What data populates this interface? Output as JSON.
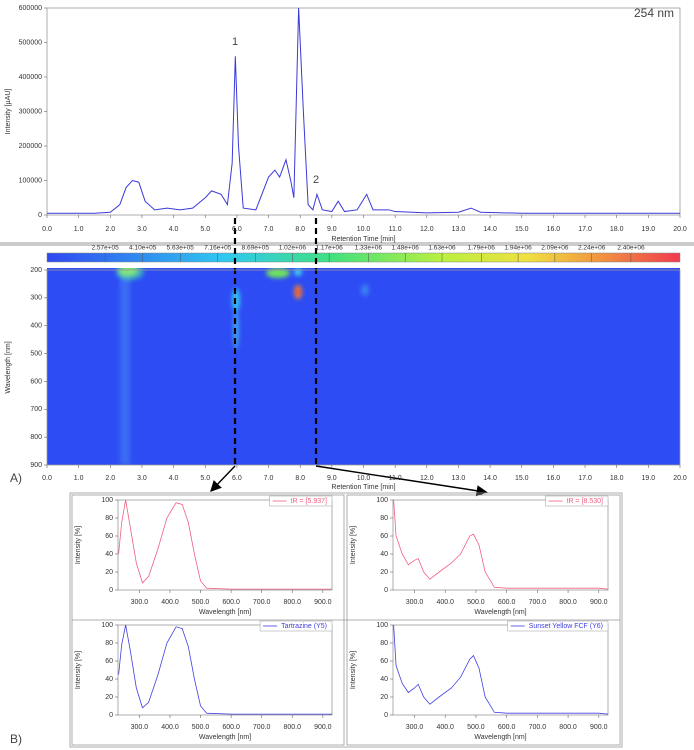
{
  "panel_labels": [
    "A)",
    "B)"
  ],
  "chart_data": [
    {
      "type": "line",
      "title": "254 nm",
      "xlabel": "Retention Time [min]",
      "ylabel": "Intensity [µAU]",
      "annotations": [
        "1",
        "2"
      ],
      "color": "#3a3ad8",
      "x": [
        0,
        1.5,
        2.0,
        2.3,
        2.5,
        2.7,
        2.9,
        3.1,
        3.4,
        3.8,
        4.2,
        4.6,
        5.0,
        5.2,
        5.5,
        5.7,
        5.85,
        5.95,
        6.05,
        6.2,
        6.6,
        7.0,
        7.2,
        7.35,
        7.55,
        7.7,
        7.8,
        7.95,
        8.1,
        8.25,
        8.4,
        8.53,
        8.7,
        9.0,
        9.2,
        9.4,
        9.8,
        10.1,
        10.3,
        10.8,
        11.0,
        12.0,
        13.0,
        13.4,
        13.7,
        15.0,
        20.0
      ],
      "values": [
        5000,
        5000,
        8000,
        30000,
        80000,
        100000,
        95000,
        40000,
        15000,
        20000,
        15000,
        20000,
        50000,
        70000,
        60000,
        30000,
        150000,
        460000,
        200000,
        20000,
        15000,
        110000,
        130000,
        110000,
        160000,
        100000,
        50000,
        600000,
        300000,
        30000,
        15000,
        60000,
        15000,
        10000,
        40000,
        10000,
        15000,
        60000,
        15000,
        15000,
        10000,
        6000,
        8000,
        20000,
        8000,
        5000,
        5000
      ],
      "xlim": [
        0,
        20
      ],
      "ylim": [
        0,
        600000
      ],
      "xticks": [
        {
          "value": 0,
          "label": "0.0"
        },
        {
          "value": 1,
          "label": "1.0"
        },
        {
          "value": 2,
          "label": "2.0"
        },
        {
          "value": 3,
          "label": "3.0"
        },
        {
          "value": 4,
          "label": "4.0"
        },
        {
          "value": 5,
          "label": "5.0"
        },
        {
          "value": 6,
          "label": "6.0"
        },
        {
          "value": 7,
          "label": "7.0"
        },
        {
          "value": 8,
          "label": "8.0"
        },
        {
          "value": 9,
          "label": "9.0"
        },
        {
          "value": 10,
          "label": "10.0"
        },
        {
          "value": 11,
          "label": "11.0"
        },
        {
          "value": 12,
          "label": "12.0"
        },
        {
          "value": 13,
          "label": "13.0"
        },
        {
          "value": 14,
          "label": "14.0"
        },
        {
          "value": 15,
          "label": "15.0"
        },
        {
          "value": 16,
          "label": "16.0"
        },
        {
          "value": 17,
          "label": "17.0"
        },
        {
          "value": 18,
          "label": "18.0"
        },
        {
          "value": 19,
          "label": "19.0"
        },
        {
          "value": 20,
          "label": "20.0"
        }
      ],
      "yticks": [
        0,
        100000,
        200000,
        300000,
        400000,
        500000,
        600000
      ]
    },
    {
      "type": "heatmap",
      "xlabel": "Retention Time [min]",
      "ylabel": "Wavelength [nm]",
      "xlim": [
        0,
        20
      ],
      "ylim": [
        200,
        900
      ],
      "y_inverted": true,
      "xticks": [
        {
          "value": 0,
          "label": "0.0"
        },
        {
          "value": 1,
          "label": "1.0"
        },
        {
          "value": 2,
          "label": "2.0"
        },
        {
          "value": 3,
          "label": "3.0"
        },
        {
          "value": 4,
          "label": "4.0"
        },
        {
          "value": 5,
          "label": "5.0"
        },
        {
          "value": 6,
          "label": "6.0"
        },
        {
          "value": 7,
          "label": "7.0"
        },
        {
          "value": 8,
          "label": "8.0"
        },
        {
          "value": 9,
          "label": "9.0"
        },
        {
          "value": 10,
          "label": "10.0"
        },
        {
          "value": 11,
          "label": "11.0"
        },
        {
          "value": 12,
          "label": "12.0"
        },
        {
          "value": 13,
          "label": "13.0"
        },
        {
          "value": 14,
          "label": "14.0"
        },
        {
          "value": 15,
          "label": "15.0"
        },
        {
          "value": 16,
          "label": "16.0"
        },
        {
          "value": 17,
          "label": "17.0"
        },
        {
          "value": 18,
          "label": "18.0"
        },
        {
          "value": 19,
          "label": "19.0"
        },
        {
          "value": 20,
          "label": "20.0"
        }
      ],
      "yticks": [
        200,
        300,
        400,
        500,
        600,
        700,
        800,
        900
      ],
      "colorbar": {
        "lim": [
          20000,
          2600000
        ],
        "ticks": [
          {
            "value": 257000,
            "label": "2.57e+05"
          },
          {
            "value": 410000,
            "label": "4.10e+05"
          },
          {
            "value": 563000,
            "label": "5.63e+05"
          },
          {
            "value": 716000,
            "label": "7.16e+05"
          },
          {
            "value": 869000,
            "label": "8.69e+05"
          },
          {
            "value": 1020000,
            "label": "1.02e+06"
          },
          {
            "value": 1170000,
            "label": "1.17e+06"
          },
          {
            "value": 1330000,
            "label": "1.33e+06"
          },
          {
            "value": 1480000,
            "label": "1.48e+06"
          },
          {
            "value": 1630000,
            "label": "1.63e+06"
          },
          {
            "value": 1790000,
            "label": "1.79e+06"
          },
          {
            "value": 1940000,
            "label": "1.94e+06"
          },
          {
            "value": 2090000,
            "label": "2.09e+06"
          },
          {
            "value": 2240000,
            "label": "2.24e+06"
          },
          {
            "value": 2400000,
            "label": "2.40e+06"
          }
        ]
      }
    },
    {
      "type": "line",
      "xlabel": "Wavelength [nm]",
      "ylabel": "Intensity [%]",
      "xlim": [
        230,
        930
      ],
      "ylim": [
        0,
        100
      ],
      "xticks": [
        {
          "value": 300,
          "label": "300.0"
        },
        {
          "value": 400,
          "label": "400.0"
        },
        {
          "value": 500,
          "label": "500.0"
        },
        {
          "value": 600,
          "label": "600.0"
        },
        {
          "value": 700,
          "label": "700.0"
        },
        {
          "value": 800,
          "label": "800.0"
        },
        {
          "value": 900,
          "label": "900.0"
        }
      ],
      "yticks": [
        0,
        20,
        40,
        60,
        80,
        100
      ],
      "x": [
        232,
        242,
        255,
        270,
        290,
        310,
        330,
        360,
        390,
        420,
        440,
        460,
        480,
        500,
        520,
        600,
        930
      ],
      "series": [
        {
          "name": "tR = [5.937]",
          "color": "#f06080",
          "values": [
            40,
            75,
            100,
            70,
            30,
            8,
            15,
            45,
            80,
            97,
            95,
            75,
            40,
            10,
            2,
            1,
            1
          ]
        }
      ]
    },
    {
      "type": "line",
      "xlabel": "Wavelength [nm]",
      "ylabel": "Intensity [%]",
      "xlim": [
        230,
        930
      ],
      "ylim": [
        0,
        100
      ],
      "xticks": [
        {
          "value": 300,
          "label": "300.0"
        },
        {
          "value": 400,
          "label": "400.0"
        },
        {
          "value": 500,
          "label": "500.0"
        },
        {
          "value": 600,
          "label": "600.0"
        },
        {
          "value": 700,
          "label": "700.0"
        },
        {
          "value": 800,
          "label": "800.0"
        },
        {
          "value": 900,
          "label": "900.0"
        }
      ],
      "yticks": [
        0,
        20,
        40,
        60,
        80,
        100
      ],
      "x": [
        232,
        240,
        260,
        280,
        300,
        312,
        330,
        350,
        380,
        420,
        450,
        480,
        492,
        510,
        530,
        560,
        600,
        900,
        930
      ],
      "series": [
        {
          "name": "tR = [8.530]",
          "color": "#f06080",
          "values": [
            100,
            60,
            40,
            28,
            33,
            35,
            20,
            12,
            20,
            30,
            40,
            60,
            62,
            50,
            20,
            3,
            2,
            2,
            1
          ]
        }
      ]
    },
    {
      "type": "line",
      "xlabel": "Wavelength [nm]",
      "ylabel": "Intensity [%]",
      "xlim": [
        230,
        930
      ],
      "ylim": [
        0,
        100
      ],
      "xticks": [
        {
          "value": 300,
          "label": "300.0"
        },
        {
          "value": 400,
          "label": "400.0"
        },
        {
          "value": 500,
          "label": "500.0"
        },
        {
          "value": 600,
          "label": "600.0"
        },
        {
          "value": 700,
          "label": "700.0"
        },
        {
          "value": 800,
          "label": "800.0"
        },
        {
          "value": 900,
          "label": "900.0"
        }
      ],
      "yticks": [
        0,
        20,
        40,
        60,
        80,
        100
      ],
      "x": [
        232,
        242,
        255,
        270,
        290,
        310,
        330,
        360,
        390,
        420,
        440,
        460,
        480,
        500,
        520,
        600,
        930
      ],
      "series": [
        {
          "name": "Tartrazine (Y5)",
          "color": "#4040e0",
          "values": [
            45,
            78,
            100,
            72,
            30,
            8,
            14,
            44,
            80,
            98,
            96,
            76,
            40,
            10,
            2,
            1,
            1
          ]
        }
      ]
    },
    {
      "type": "line",
      "xlabel": "Wavelength [nm]",
      "ylabel": "Intensity [%]",
      "xlim": [
        230,
        930
      ],
      "ylim": [
        0,
        100
      ],
      "xticks": [
        {
          "value": 300,
          "label": "300.0"
        },
        {
          "value": 400,
          "label": "400.0"
        },
        {
          "value": 500,
          "label": "500.0"
        },
        {
          "value": 600,
          "label": "600.0"
        },
        {
          "value": 700,
          "label": "700.0"
        },
        {
          "value": 800,
          "label": "800.0"
        },
        {
          "value": 900,
          "label": "900.0"
        }
      ],
      "yticks": [
        0,
        20,
        40,
        60,
        80,
        100
      ],
      "x": [
        232,
        240,
        260,
        280,
        300,
        312,
        330,
        350,
        380,
        420,
        450,
        480,
        492,
        510,
        530,
        560,
        600,
        900,
        930
      ],
      "series": [
        {
          "name": "Sunset Yellow FCF (Y6)",
          "color": "#4040e0",
          "values": [
            100,
            55,
            35,
            25,
            30,
            34,
            20,
            12,
            20,
            30,
            42,
            62,
            66,
            52,
            20,
            3,
            2,
            2,
            1
          ]
        }
      ]
    }
  ]
}
